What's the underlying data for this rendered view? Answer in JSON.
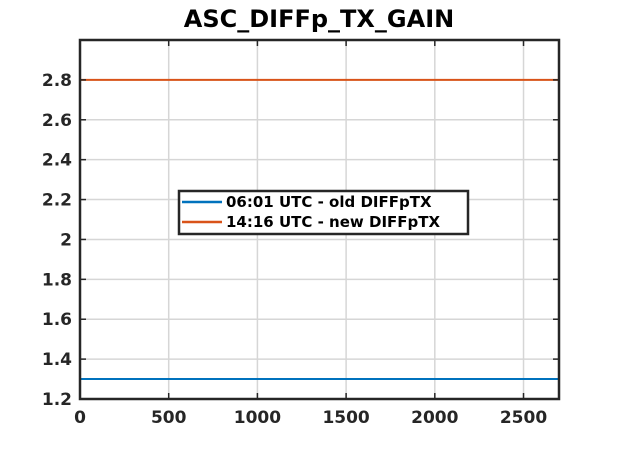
{
  "chart_data": {
    "type": "line",
    "title": "ASC_DIFFp_TX_GAIN",
    "xlabel": "",
    "ylabel": "",
    "xlim": [
      0,
      2700
    ],
    "ylim": [
      1.2,
      3.0
    ],
    "x_ticks": [
      0,
      500,
      1000,
      1500,
      2000,
      2500
    ],
    "x_tick_labels": [
      "0",
      "500",
      "1000",
      "1500",
      "2000",
      "2500"
    ],
    "y_ticks": [
      1.2,
      1.4,
      1.6,
      1.8,
      2.0,
      2.2,
      2.4,
      2.6,
      2.8
    ],
    "y_tick_labels": [
      "1.2",
      "1.4",
      "1.6",
      "1.8",
      "2",
      "2.2",
      "2.4",
      "2.6",
      "2.8"
    ],
    "grid": true,
    "legend_position": "center",
    "series": [
      {
        "name": "06:01 UTC - old DIFFpTX",
        "color": "#0072BD",
        "x": [
          0,
          2700
        ],
        "y": [
          1.3,
          1.3
        ]
      },
      {
        "name": "14:16 UTC - new DIFFpTX",
        "color": "#D95319",
        "x": [
          0,
          2700
        ],
        "y": [
          2.8,
          2.8
        ]
      }
    ]
  }
}
